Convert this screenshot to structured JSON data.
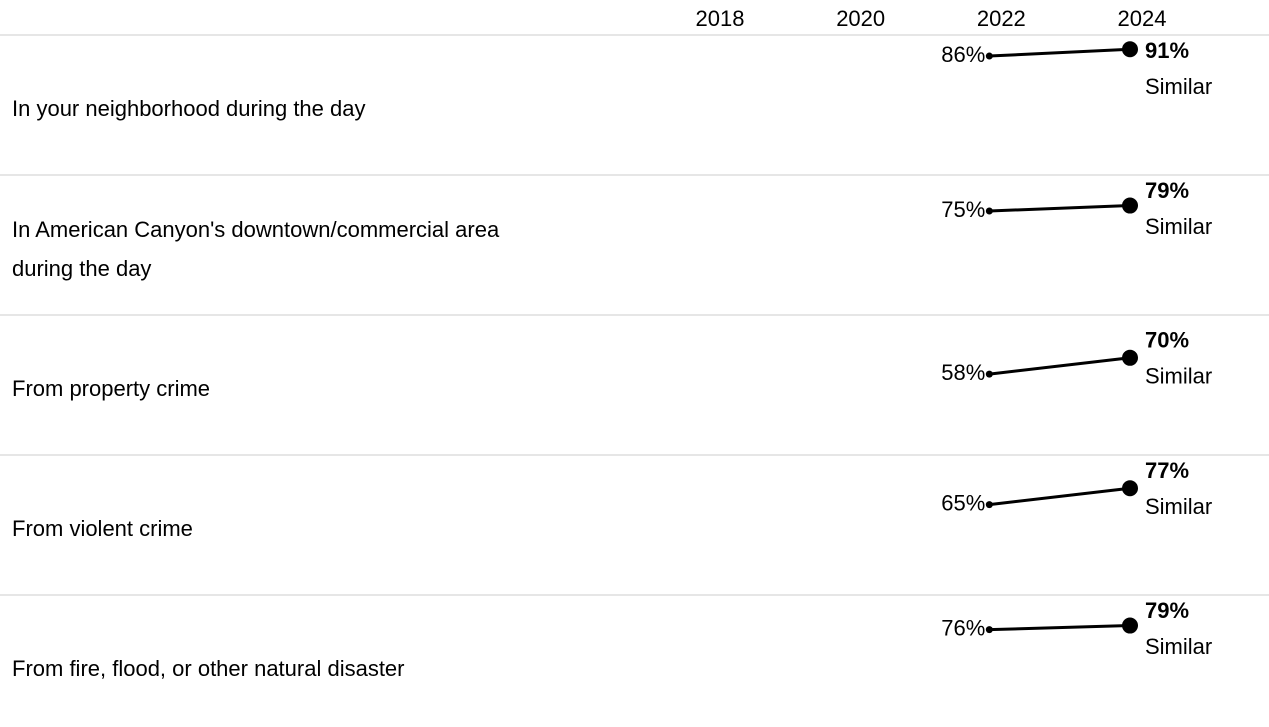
{
  "chart_data": {
    "type": "line",
    "x": [
      2018,
      2020,
      2022,
      2024
    ],
    "xlim": [
      2018,
      2024
    ],
    "ylim": [
      0,
      100
    ],
    "line_color": "#000000",
    "start_label_color": "#2a8595",
    "end_label_color": "#1e6b78",
    "comparison_color": "#8c9c90",
    "rows": [
      {
        "label": [
          "In your neighborhood during the day"
        ],
        "values": [
          null,
          null,
          86,
          91
        ],
        "value_labels": [
          null,
          null,
          "86%",
          "91%"
        ],
        "comparison": "Similar"
      },
      {
        "label": [
          "In American Canyon's downtown/commercial area",
          "during the day"
        ],
        "values": [
          null,
          null,
          75,
          79
        ],
        "value_labels": [
          null,
          null,
          "75%",
          "79%"
        ],
        "comparison": "Similar"
      },
      {
        "label": [
          "From property crime"
        ],
        "values": [
          null,
          null,
          58,
          70
        ],
        "value_labels": [
          null,
          null,
          "58%",
          "70%"
        ],
        "comparison": "Similar"
      },
      {
        "label": [
          "From violent crime"
        ],
        "values": [
          null,
          null,
          65,
          77
        ],
        "value_labels": [
          null,
          null,
          "65%",
          "77%"
        ],
        "comparison": "Similar"
      },
      {
        "label": [
          "From fire, flood, or other natural disaster"
        ],
        "values": [
          null,
          null,
          76,
          79
        ],
        "value_labels": [
          null,
          null,
          "76%",
          "79%"
        ],
        "comparison": "Similar"
      }
    ]
  }
}
